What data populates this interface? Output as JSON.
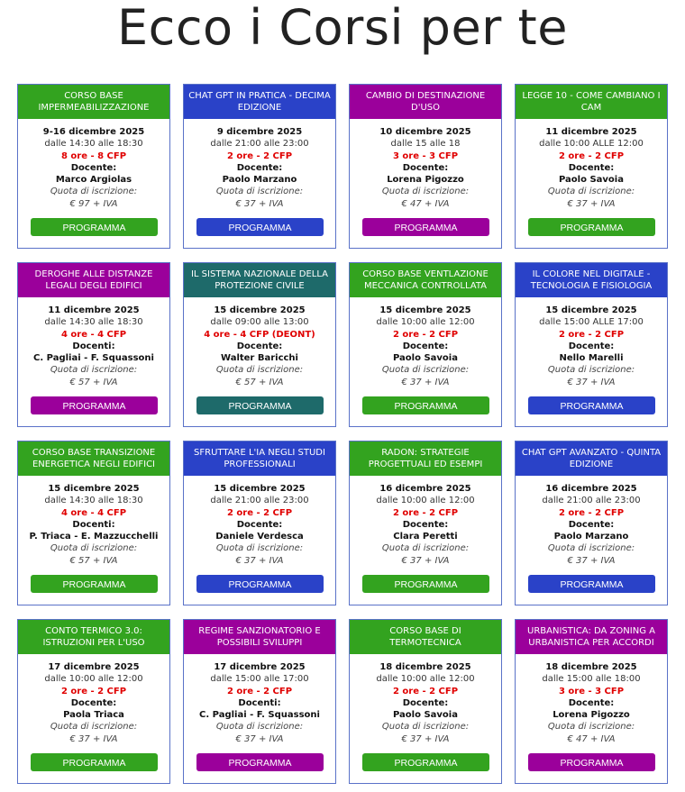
{
  "page_title": "Ecco i Corsi per te",
  "colors": {
    "green": "#33a31f",
    "blue": "#2a42c8",
    "purple": "#9b009b",
    "teal": "#1e6a6a",
    "cfp_red": "#e00000",
    "card_border": "#5a72c8"
  },
  "button_label": "PROGRAMMA",
  "fee_label": "Quota di iscrizione:",
  "courses": [
    {
      "title": "CORSO BASE IMPERMEABILIZZAZIONE",
      "color": "green",
      "date": "9-16 dicembre 2025",
      "time": "dalle 14:30 alle 18:30",
      "cfp": "8 ore - 8 CFP",
      "teacher_label": "Docente:",
      "teacher": "Marco Argiolas",
      "fee": "€ 97 + IVA"
    },
    {
      "title": "CHAT GPT IN PRATICA - DECIMA EDIZIONE",
      "color": "blue",
      "date": "9 dicembre 2025",
      "time": "dalle 21:00 alle 23:00",
      "cfp": "2 ore - 2 CFP",
      "teacher_label": "Docente:",
      "teacher": "Paolo Marzano",
      "fee": "€ 37 + IVA"
    },
    {
      "title": "CAMBIO DI DESTINAZIONE D'USO",
      "color": "purple",
      "date": "10 dicembre 2025",
      "time": "dalle 15 alle 18",
      "cfp": "3 ore - 3 CFP",
      "teacher_label": "Docente:",
      "teacher": "Lorena Pigozzo",
      "fee": "€ 47 + IVA"
    },
    {
      "title": "LEGGE 10 - COME CAMBIANO I CAM",
      "color": "green",
      "date": "11 dicembre 2025",
      "time": "dalle 10:00 ALLE 12:00",
      "cfp": "2 ore - 2 CFP",
      "teacher_label": "Docente:",
      "teacher": "Paolo Savoia",
      "fee": "€ 37 + IVA"
    },
    {
      "title": "DEROGHE ALLE DISTANZE LEGALI DEGLI EDIFICI",
      "color": "purple",
      "date": "11 dicembre 2025",
      "time": "dalle 14:30 alle 18:30",
      "cfp": "4 ore - 4 CFP",
      "teacher_label": "Docenti:",
      "teacher": "C. Pagliai - F. Squassoni",
      "fee": "€ 57 + IVA"
    },
    {
      "title": "IL SISTEMA NAZIONALE DELLA PROTEZIONE CIVILE",
      "color": "teal",
      "date": "15 dicembre 2025",
      "time": "dalle 09:00 alle 13:00",
      "cfp": "4 ore - 4 CFP (DEONT)",
      "teacher_label": "Docente:",
      "teacher": "Walter Baricchi",
      "fee": "€ 57 + IVA"
    },
    {
      "title": "CORSO BASE VENTLAZIONE MECCANICA CONTROLLATA",
      "color": "green",
      "date": "15 dicembre 2025",
      "time": "dalle 10:00 alle 12:00",
      "cfp": "2 ore - 2 CFP",
      "teacher_label": "Docente:",
      "teacher": "Paolo Savoia",
      "fee": "€ 37 + IVA"
    },
    {
      "title": "IL COLORE NEL DIGITALE - TECNOLOGIA E FISIOLOGIA",
      "color": "blue",
      "date": "15 dicembre 2025",
      "time": "dalle 15:00 ALLE 17:00",
      "cfp": "2 ore - 2 CFP",
      "teacher_label": "Docente:",
      "teacher": "Nello Marelli",
      "fee": "€ 37 + IVA"
    },
    {
      "title": "CORSO BASE TRANSIZIONE ENERGETICA NEGLI EDIFICI",
      "color": "green",
      "date": "15 dicembre 2025",
      "time": "dalle 14:30 alle 18:30",
      "cfp": "4 ore - 4 CFP",
      "teacher_label": "Docenti:",
      "teacher": "P. Triaca - E. Mazzucchelli",
      "fee": "€ 57 + IVA"
    },
    {
      "title": "SFRUTTARE L'IA NEGLI STUDI PROFESSIONALI",
      "color": "blue",
      "date": "15 dicembre 2025",
      "time": "dalle 21:00 alle 23:00",
      "cfp": "2 ore - 2 CFP",
      "teacher_label": "Docente:",
      "teacher": "Daniele Verdesca",
      "fee": "€ 37 + IVA"
    },
    {
      "title": "RADON: STRATEGIE PROGETTUALI ED ESEMPI",
      "color": "green",
      "date": "16 dicembre 2025",
      "time": "dalle 10:00 alle 12:00",
      "cfp": "2 ore - 2 CFP",
      "teacher_label": "Docente:",
      "teacher": "Clara Peretti",
      "fee": "€ 37 + IVA"
    },
    {
      "title": "CHAT GPT AVANZATO - QUINTA EDIZIONE",
      "color": "blue",
      "date": "16 dicembre 2025",
      "time": "dalle 21:00 alle 23:00",
      "cfp": "2 ore - 2 CFP",
      "teacher_label": "Docente:",
      "teacher": "Paolo Marzano",
      "fee": "€ 37 + IVA"
    },
    {
      "title": "CONTO TERMICO 3.0: ISTRUZIONI PER L'USO",
      "color": "green",
      "date": "17 dicembre 2025",
      "time": "dalle 10:00 alle 12:00",
      "cfp": "2 ore - 2 CFP",
      "teacher_label": "Docente:",
      "teacher": "Paola Triaca",
      "fee": "€ 37 + IVA"
    },
    {
      "title": "REGIME SANZIONATORIO E POSSIBILI SVILUPPI",
      "color": "purple",
      "date": "17 dicembre 2025",
      "time": "dalle 15:00 alle 17:00",
      "cfp": "2 ore - 2 CFP",
      "teacher_label": "Docenti:",
      "teacher": "C. Pagliai - F. Squassoni",
      "fee": "€ 37 + IVA"
    },
    {
      "title": "CORSO BASE DI TERMOTECNICA",
      "color": "green",
      "date": "18 dicembre 2025",
      "time": "dalle 10:00 alle 12:00",
      "cfp": "2 ore - 2 CFP",
      "teacher_label": "Docente:",
      "teacher": "Paolo Savoia",
      "fee": "€ 37 + IVA"
    },
    {
      "title": "URBANISTICA: DA ZONING A URBANISTICA PER ACCORDI",
      "color": "purple",
      "date": "18 dicembre 2025",
      "time": "dalle 15:00 alle 18:00",
      "cfp": "3 ore - 3 CFP",
      "teacher_label": "Docente:",
      "teacher": "Lorena Pigozzo",
      "fee": "€ 47 + IVA"
    }
  ]
}
